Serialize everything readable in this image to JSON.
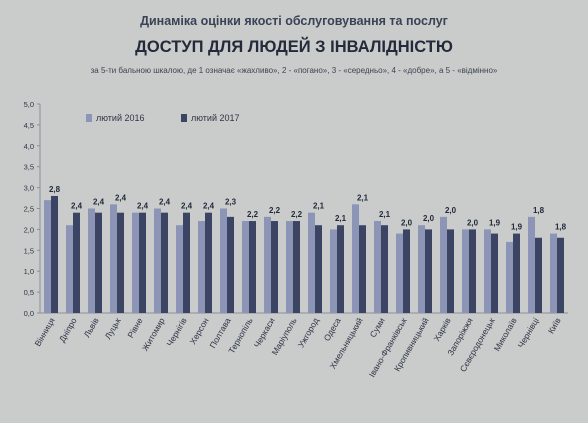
{
  "header": {
    "title": "Динаміка оцінки якості обслуговування та послуг",
    "subtitle": "ДОСТУП ДЛЯ ЛЮДЕЙ З ІНВАЛІДНІСТЮ",
    "scale_note": "за 5-ти бальною шкалою, де 1 означає «жахливо», 2 - «погано», 3 - «середньо», 4 - «добре», а 5 - «відмінно»"
  },
  "chart_data": {
    "type": "bar",
    "title": "ДОСТУП ДЛЯ ЛЮДЕЙ З ІНВАЛІДНІСТЮ",
    "xlabel": "",
    "ylabel": "",
    "ylim": [
      0,
      5
    ],
    "yticks": [
      "0,0",
      "0,5",
      "1,0",
      "1,5",
      "2,0",
      "2,5",
      "3,0",
      "3,5",
      "4,0",
      "4,5",
      "5,0"
    ],
    "grid": false,
    "legend_position": "top-left",
    "categories": [
      "Вінниця",
      "Дніпро",
      "Львів",
      "Луцьк",
      "Рівне",
      "Житомир",
      "Чернігів",
      "Херсон",
      "Полтава",
      "Тернопіль",
      "Черкаси",
      "Маріуполь",
      "Ужгород",
      "Одеса",
      "Хмельницький",
      "Суми",
      "Івано-Франківськ",
      "Кропивницький",
      "Харків",
      "Запоріжжя",
      "Сєвєродонецьк",
      "Миколаїв",
      "Чернівці",
      "Київ"
    ],
    "series": [
      {
        "name": "лютий 2016",
        "color": "#8c95b6",
        "values": [
          2.7,
          2.1,
          2.5,
          2.6,
          2.4,
          2.5,
          2.1,
          2.2,
          2.5,
          2.2,
          2.3,
          2.2,
          2.4,
          2.0,
          2.6,
          2.2,
          1.9,
          2.1,
          2.3,
          2.0,
          2.0,
          1.7,
          2.3,
          1.9
        ]
      },
      {
        "name": "лютий 2017",
        "color": "#3b4563",
        "values": [
          2.8,
          2.4,
          2.4,
          2.4,
          2.4,
          2.4,
          2.4,
          2.4,
          2.3,
          2.2,
          2.2,
          2.2,
          2.1,
          2.1,
          2.1,
          2.1,
          2.0,
          2.0,
          2.0,
          2.0,
          1.9,
          1.9,
          1.8,
          1.8
        ]
      }
    ],
    "data_labels": [
      "2,8",
      "2,4",
      "2,4",
      "2,4",
      "2,4",
      "2,4",
      "2,4",
      "2,4",
      "2,3",
      "2,2",
      "2,2",
      "2,2",
      "2,1",
      "2,1",
      "2,1",
      "2,1",
      "2,0",
      "2,0",
      "2,0",
      "2,0",
      "1,9",
      "1,9",
      "1,8",
      "1,8"
    ]
  }
}
